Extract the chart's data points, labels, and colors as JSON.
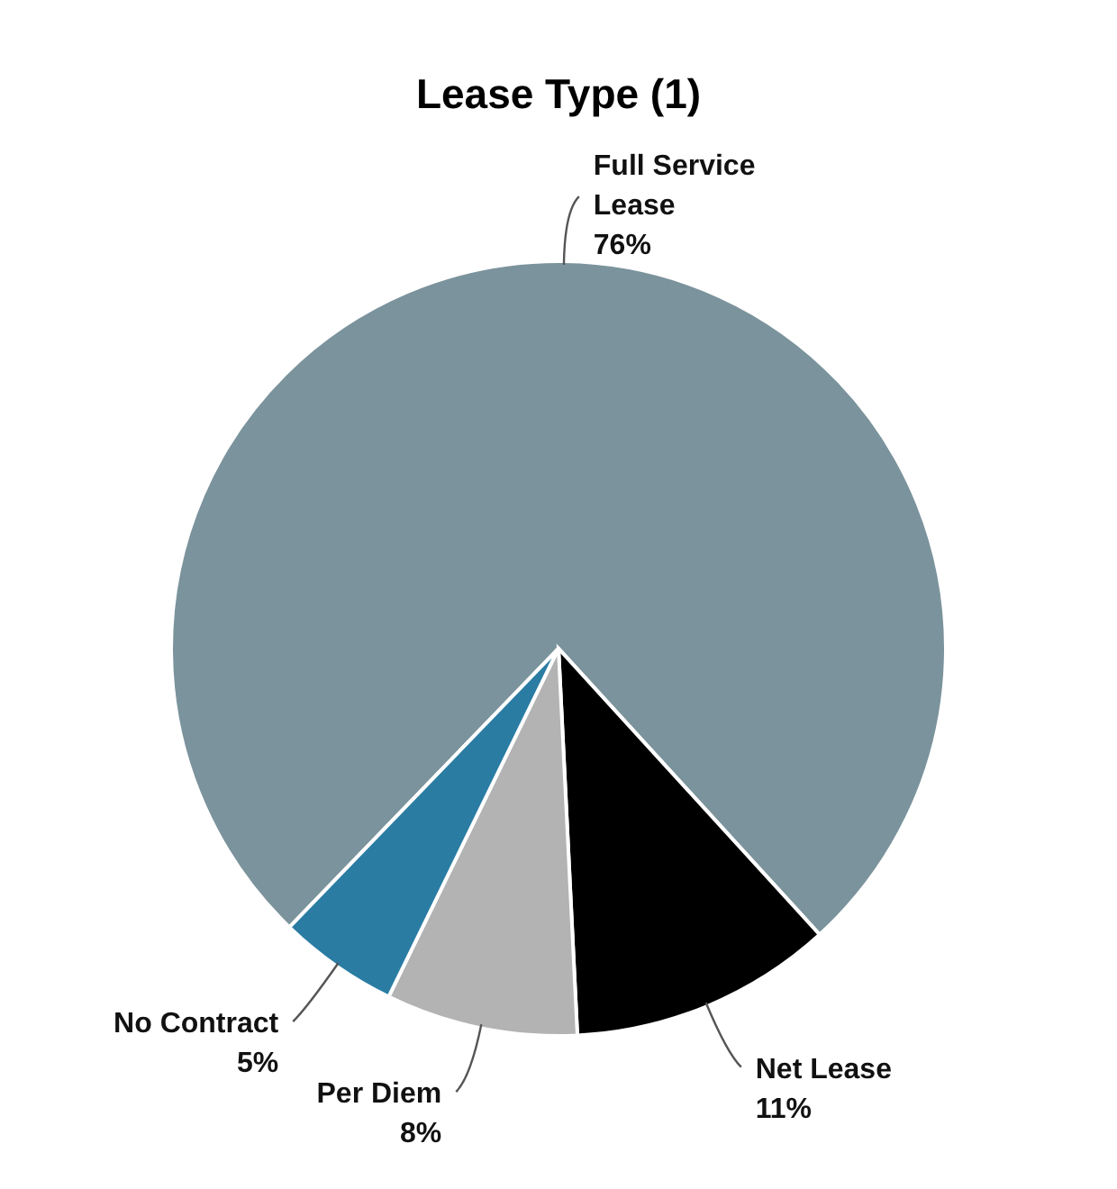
{
  "chart_data": {
    "type": "pie",
    "title": "Lease Type (1)",
    "categories": [
      "Full Service Lease",
      "Net Lease",
      "Per Diem",
      "No Contract"
    ],
    "values": [
      76,
      11,
      8,
      5
    ],
    "colors": [
      "#7b939c",
      "#000000",
      "#b3b3b3",
      "#2a7ca3"
    ],
    "value_labels": [
      "76%",
      "11%",
      "8%",
      "5%"
    ]
  }
}
